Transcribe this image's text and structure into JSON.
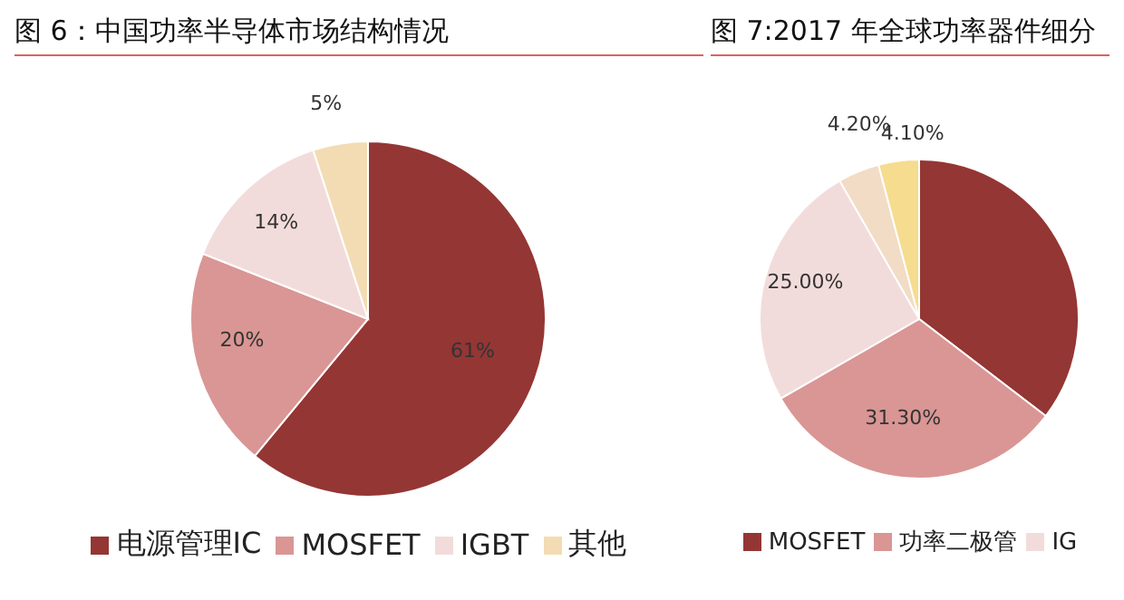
{
  "chart_data": [
    {
      "type": "pie",
      "title": "图 6：中国功率半导体市场结构情况",
      "categories": [
        "电源管理IC",
        "MOSFET",
        "IGBT",
        "其他"
      ],
      "values": [
        61,
        20,
        14,
        5
      ],
      "colors": [
        "#943634",
        "#d99694",
        "#f2dcdb",
        "#f3dcb4"
      ],
      "value_labels": [
        "61%",
        "20%",
        "14%",
        "5%"
      ],
      "legend": "bottom"
    },
    {
      "type": "pie",
      "title": "图 7:2017 年全球功率器件细分",
      "categories": [
        "MOSFET",
        "功率二极管",
        "IG",
        null,
        null
      ],
      "values": [
        35.4,
        31.3,
        25.0,
        4.2,
        4.1
      ],
      "colors": [
        "#943634",
        "#d99694",
        "#f2dcdb",
        "#f2dcc6",
        "#f5dc8e"
      ],
      "value_labels": [
        null,
        "31.30%",
        "25.00%",
        "4.20%",
        "4.10%"
      ],
      "legend": "bottom"
    }
  ]
}
